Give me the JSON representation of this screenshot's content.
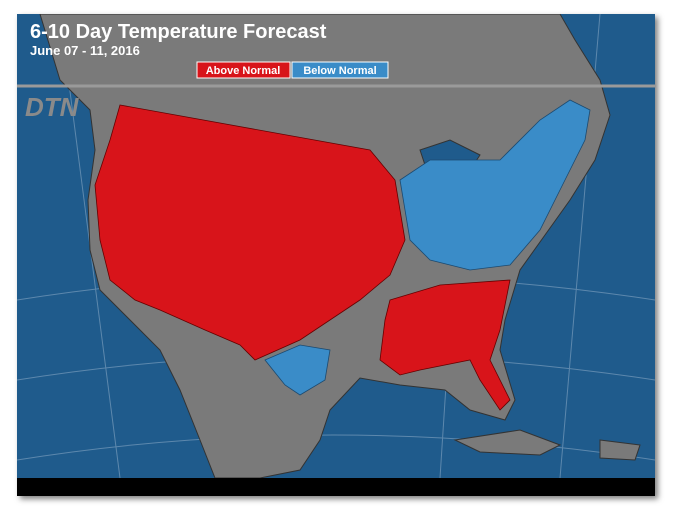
{
  "header": {
    "title": "6-10 Day Temperature Forecast",
    "date": "June 07 - 11, 2016"
  },
  "legend": {
    "above": "Above Normal",
    "below": "Below Normal"
  },
  "logo": "DTN"
}
